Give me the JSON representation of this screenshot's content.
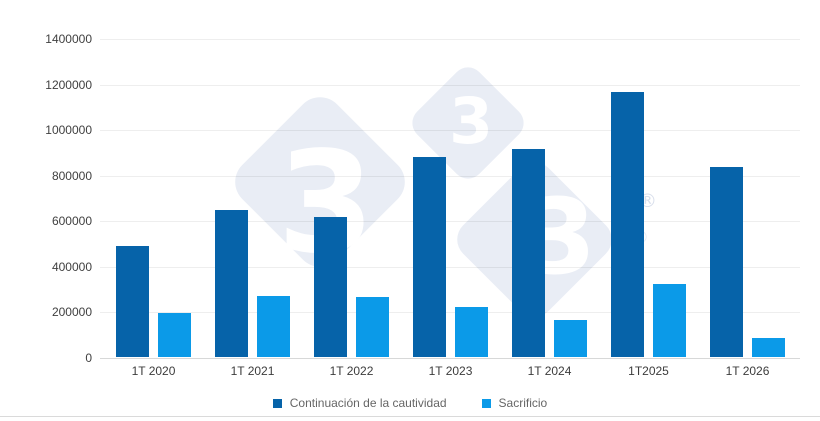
{
  "chart_data": {
    "type": "bar",
    "title": "",
    "xlabel": "",
    "ylabel": "",
    "categories": [
      "1T 2020",
      "1T 2021",
      "1T 2022",
      "1T 2023",
      "1T 2024",
      "1T2025",
      "1T 2026"
    ],
    "series": [
      {
        "name": "Continuación de la cautividad",
        "color": "#0663a9",
        "values": [
          489000,
          645000,
          616000,
          878000,
          915000,
          1167000,
          837000
        ]
      },
      {
        "name": "Sacrificio",
        "color": "#0b9ae8",
        "values": [
          192000,
          267000,
          265000,
          220000,
          162000,
          322000,
          84000
        ]
      }
    ],
    "ylim": [
      0,
      1400000
    ],
    "yticks": [
      {
        "v": 0,
        "label": "0"
      },
      {
        "v": 200000,
        "label": "200000"
      },
      {
        "v": 400000,
        "label": "400000"
      },
      {
        "v": 600000,
        "label": "600000"
      },
      {
        "v": 800000,
        "label": "800000"
      },
      {
        "v": 1000000,
        "label": "1000000"
      },
      {
        "v": 1200000,
        "label": "1200000"
      },
      {
        "v": 1400000,
        "label": "1400000"
      }
    ],
    "grid": true,
    "legend_position": "bottom"
  },
  "watermark": {
    "glyph": "3",
    "reg": "®"
  },
  "colors": {
    "series_dark": "#0663a9",
    "series_light": "#0b9ae8",
    "watermark_bg": "#e9edf5",
    "watermark_glyph": "#ffffff",
    "axis_label": "#404040",
    "legend_text": "#666666"
  }
}
